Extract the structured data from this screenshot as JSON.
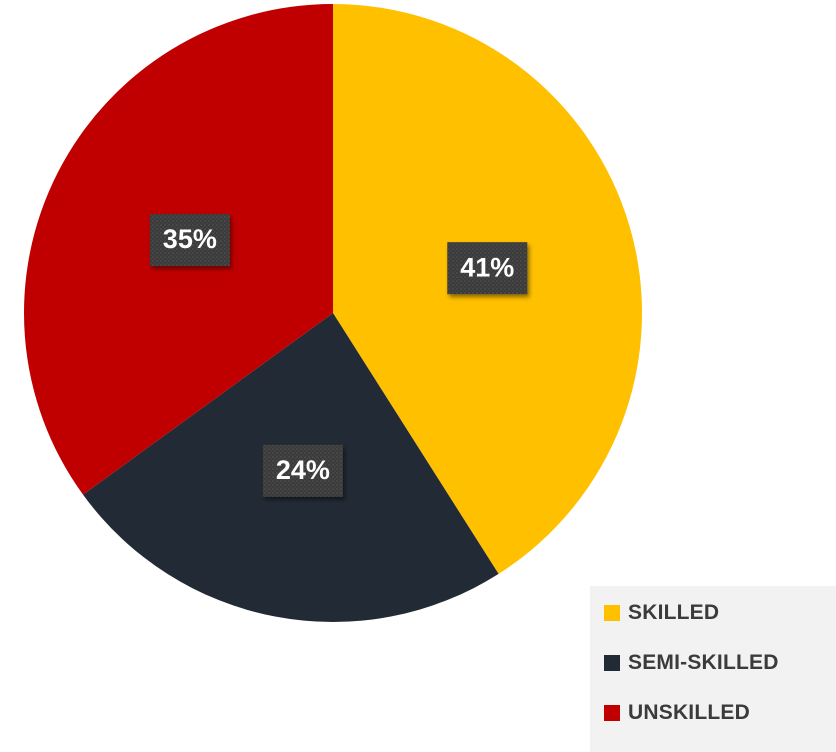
{
  "chart_data": {
    "type": "pie",
    "categories": [
      "SKILLED",
      "SEMI-SKILLED",
      "UNSKILLED"
    ],
    "values": [
      41,
      24,
      35
    ],
    "data_labels": [
      "41%",
      "24%",
      "35%"
    ],
    "colors": [
      "#FFC000",
      "#222A35",
      "#C00000"
    ],
    "legend_placement": "bottom-right",
    "start_angle_deg": 0,
    "direction": "clockwise"
  },
  "legend": {
    "items": [
      {
        "label": "SKILLED",
        "color": "#FFC000"
      },
      {
        "label": "SEMI-SKILLED",
        "color": "#222A35"
      },
      {
        "label": "UNSKILLED",
        "color": "#C00000"
      }
    ]
  }
}
